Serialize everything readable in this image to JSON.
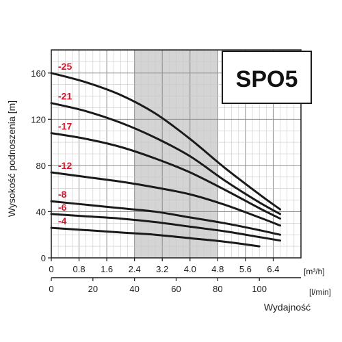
{
  "chart_data": {
    "type": "line",
    "title": "",
    "model": "SPO5",
    "ylabel": "Wysokość podnoszenia [m]",
    "xlabel": "Wydajność",
    "x_unit_primary": "[m³/h]",
    "x_unit_secondary": "[l/min]",
    "xlim": [
      0,
      7.2
    ],
    "ylim": [
      0,
      180
    ],
    "yticks": [
      0,
      40,
      80,
      120,
      160
    ],
    "xticks_primary": [
      "0",
      "0.8",
      "1.6",
      "2.4",
      "3.2",
      "4.0",
      "4.8",
      "5.6",
      "6.4"
    ],
    "xticks_secondary": [
      "0",
      "20",
      "40",
      "60",
      "80",
      "100"
    ],
    "highlight_range": [
      2.4,
      4.8
    ],
    "grid": true,
    "series": [
      {
        "name": "-25",
        "x": [
          0,
          1,
          2,
          3,
          4,
          5,
          6,
          6.6
        ],
        "values": [
          160,
          152,
          141,
          125,
          103,
          78,
          55,
          42
        ]
      },
      {
        "name": "-21",
        "x": [
          0,
          1,
          2,
          3,
          4,
          5,
          6,
          6.6
        ],
        "values": [
          134,
          127,
          117,
          104,
          88,
          67,
          48,
          38
        ]
      },
      {
        "name": "-17",
        "x": [
          0,
          1,
          2,
          3,
          4,
          5,
          6,
          6.6
        ],
        "values": [
          108,
          103,
          96,
          86,
          74,
          59,
          43,
          34
        ]
      },
      {
        "name": "-12",
        "x": [
          0,
          1,
          2,
          3,
          4,
          5,
          6,
          6.6
        ],
        "values": [
          74,
          70,
          66,
          61,
          55,
          46,
          35,
          28
        ]
      },
      {
        "name": "-8",
        "x": [
          0,
          1,
          2,
          3,
          4,
          5,
          6,
          6.6
        ],
        "values": [
          49,
          46,
          43,
          40,
          35,
          30,
          24,
          20
        ]
      },
      {
        "name": "-6",
        "x": [
          0,
          1,
          2,
          3,
          4,
          5,
          6,
          6.6
        ],
        "values": [
          38,
          36,
          34,
          31,
          27,
          23,
          18,
          15
        ]
      },
      {
        "name": "-4",
        "x": [
          0,
          1,
          2,
          3,
          4,
          5,
          6
        ],
        "values": [
          26,
          24,
          22,
          20,
          17,
          14,
          10
        ]
      }
    ]
  },
  "colors": {
    "curve": "#1a1a1a",
    "curve_label": "#d3162a",
    "highlight": "#d4d4d4",
    "grid_major": "#8c8c8c",
    "grid_minor": "#c8c8c8"
  }
}
